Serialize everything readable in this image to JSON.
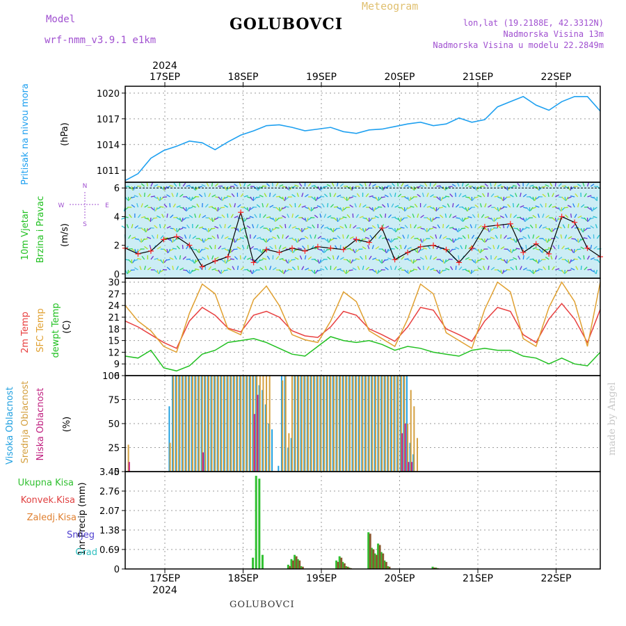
{
  "header": {
    "model_label": "Model",
    "model_name": "wrf-nmm_v3.9.1 e1km",
    "station": "GOLUBOVCI",
    "subtitle": "Meteogram",
    "lonlat": "lon,lat (19.2188E, 42.3312N)",
    "elevation": "Nadmorska Visina 13m",
    "model_elevation": "Nadmorska Visina u modelu 22.2849m"
  },
  "footer": {
    "station": "GOLUBOVCI",
    "watermark": "made by Angel"
  },
  "colors": {
    "pressure": "#1ea0f0",
    "temp2m": "#e84040",
    "sfc_temp": "#e0a030",
    "dewpt": "#20c020",
    "cloud_high": "#20a0e0",
    "cloud_mid": "#d4a040",
    "cloud_low": "#c02080",
    "rain_total": "#30c030",
    "rain_conv": "#e04040",
    "rain_frz": "#e08030",
    "snow": "#5040d0",
    "grad": "#30c0c0",
    "speed_line": "#000000",
    "speed_mark": "#ff2020"
  },
  "chart_data": [
    {
      "type": "line",
      "title": "",
      "ylabels": [
        "Pritisak na nivou mora",
        "(hPa)"
      ],
      "xticks": [
        "17SEP",
        "18SEP",
        "19SEP",
        "20SEP",
        "21SEP",
        "22SEP"
      ],
      "top_year": "2024",
      "yticks": [
        1011,
        1014,
        1017,
        1020
      ],
      "ylim": [
        1009.6,
        1020.8
      ],
      "x": [
        0,
        4,
        8,
        12,
        16,
        20,
        24,
        28,
        32,
        36,
        40,
        44,
        48,
        52,
        56,
        60,
        64,
        68,
        72,
        76,
        80,
        84,
        88,
        92,
        96,
        100,
        104,
        108,
        112,
        116,
        120,
        124,
        128,
        132,
        136,
        140,
        144,
        148
      ],
      "series": [
        {
          "key": "pressure",
          "values": [
            1009.8,
            1010.6,
            1012.4,
            1013.3,
            1013.8,
            1014.4,
            1014.2,
            1013.4,
            1014.3,
            1015.1,
            1015.6,
            1016.2,
            1016.3,
            1016.0,
            1015.6,
            1015.8,
            1016.0,
            1015.5,
            1015.3,
            1015.7,
            1015.8,
            1016.1,
            1016.4,
            1016.6,
            1016.2,
            1016.4,
            1017.1,
            1016.6,
            1016.9,
            1018.4,
            1019.0,
            1019.6,
            1018.6,
            1018.0,
            1019.0,
            1019.6,
            1019.6,
            1017.9
          ]
        }
      ]
    },
    {
      "type": "line",
      "title": "",
      "ylabels": [
        "10m Vjetar",
        "Brzina i Pravac",
        "(m/s)"
      ],
      "compass": [
        "N",
        "W",
        "E",
        "S"
      ],
      "yticks": [
        0,
        2,
        4,
        6
      ],
      "ylim": [
        -0.3,
        6.4
      ],
      "x": [
        0,
        4,
        8,
        12,
        16,
        20,
        24,
        28,
        32,
        36,
        40,
        44,
        48,
        52,
        56,
        60,
        64,
        68,
        72,
        76,
        80,
        84,
        88,
        92,
        96,
        100,
        104,
        108,
        112,
        116,
        120,
        124,
        128,
        132,
        136,
        140,
        144,
        148
      ],
      "series": [
        {
          "key": "speed_line",
          "values": [
            1.8,
            1.4,
            1.6,
            2.4,
            2.6,
            2.0,
            0.5,
            0.9,
            1.2,
            4.3,
            0.8,
            1.7,
            1.5,
            1.8,
            1.6,
            1.9,
            1.8,
            1.7,
            2.4,
            2.2,
            3.2,
            1.0,
            1.5,
            1.9,
            2.0,
            1.7,
            0.8,
            1.8,
            3.3,
            3.4,
            3.5,
            1.5,
            2.1,
            1.4,
            4.0,
            3.6,
            1.8,
            1.2
          ]
        }
      ]
    },
    {
      "type": "line",
      "title": "",
      "ylabels": [
        "2m Temp",
        "SFC Temp",
        "dewpt Temp",
        "(C)"
      ],
      "yticks": [
        6,
        9,
        12,
        15,
        18,
        21,
        24,
        27,
        30
      ],
      "ylim": [
        6,
        31
      ],
      "x": [
        0,
        4,
        8,
        12,
        16,
        20,
        24,
        28,
        32,
        36,
        40,
        44,
        48,
        52,
        56,
        60,
        64,
        68,
        72,
        76,
        80,
        84,
        88,
        92,
        96,
        100,
        104,
        108,
        112,
        116,
        120,
        124,
        128,
        132,
        136,
        140,
        144,
        148
      ],
      "series": [
        {
          "key": "temp2m",
          "name": "2m Temp",
          "values": [
            20.0,
            18.5,
            16.5,
            14.5,
            13.0,
            20.0,
            23.5,
            21.5,
            18.2,
            17.2,
            21.5,
            22.5,
            21.0,
            17.5,
            16.2,
            15.8,
            18.5,
            22.5,
            21.5,
            18.0,
            16.5,
            14.8,
            18.5,
            23.5,
            22.8,
            18.0,
            16.5,
            14.8,
            20.0,
            23.5,
            22.5,
            16.5,
            14.5,
            20.5,
            24.5,
            20.5,
            14.5,
            23.0
          ]
        },
        {
          "key": "sfc_temp",
          "name": "SFC Temp",
          "values": [
            24.0,
            20.0,
            17.5,
            13.5,
            12.0,
            22.0,
            29.5,
            27.0,
            18.0,
            16.5,
            25.5,
            29.0,
            24.0,
            16.5,
            15.2,
            14.5,
            20.0,
            27.5,
            25.0,
            17.5,
            15.5,
            13.5,
            20.5,
            29.5,
            27.0,
            17.0,
            15.0,
            13.0,
            23.0,
            30.0,
            27.5,
            15.5,
            13.5,
            23.5,
            30.0,
            25.0,
            13.5,
            30.0
          ]
        },
        {
          "key": "dewpt",
          "name": "dewpt Temp",
          "values": [
            11.0,
            10.5,
            12.5,
            8.0,
            7.2,
            8.5,
            11.5,
            12.5,
            14.5,
            15.0,
            15.5,
            14.5,
            13.0,
            11.5,
            11.0,
            13.5,
            16.0,
            15.0,
            14.5,
            15.0,
            14.0,
            12.5,
            13.5,
            13.0,
            12.0,
            11.5,
            11.0,
            12.5,
            13.0,
            12.5,
            12.5,
            11.0,
            10.5,
            9.0,
            10.5,
            9.0,
            8.5,
            12.0
          ]
        }
      ]
    },
    {
      "type": "bar",
      "title": "",
      "ylabels": [
        "Visoka Oblacnost",
        "Srednja Oblacnost",
        "Niska Oblacnost",
        "(%)"
      ],
      "yticks": [
        0,
        25,
        50,
        75,
        100
      ],
      "ylim": [
        0,
        100
      ],
      "x": [
        1,
        14,
        15,
        16,
        17,
        18,
        19,
        20,
        21,
        22,
        23,
        24,
        25,
        26,
        27,
        28,
        29,
        30,
        31,
        32,
        33,
        34,
        35,
        36,
        37,
        38,
        39,
        40,
        41,
        42,
        43,
        44,
        45,
        46,
        48,
        49,
        50,
        51,
        52,
        53,
        54,
        55,
        56,
        57,
        58,
        59,
        60,
        61,
        62,
        63,
        64,
        65,
        66,
        67,
        68,
        69,
        70,
        71,
        72,
        73,
        74,
        75,
        76,
        77,
        78,
        79,
        80,
        81,
        82,
        83,
        84,
        85,
        86,
        87,
        88,
        89,
        90,
        91
      ],
      "series": [
        {
          "key": "cloud_high",
          "name": "Visoka Oblacnost",
          "values": [
            0,
            68,
            100,
            100,
            100,
            100,
            100,
            100,
            100,
            100,
            100,
            100,
            100,
            100,
            100,
            100,
            100,
            100,
            100,
            100,
            100,
            100,
            100,
            100,
            100,
            100,
            100,
            100,
            100,
            90,
            85,
            70,
            50,
            44,
            6,
            100,
            100,
            25,
            35,
            100,
            100,
            100,
            100,
            100,
            100,
            100,
            100,
            100,
            100,
            100,
            100,
            100,
            100,
            100,
            100,
            100,
            100,
            100,
            100,
            100,
            100,
            100,
            100,
            100,
            100,
            100,
            100,
            100,
            100,
            100,
            100,
            100,
            100,
            100,
            100,
            30,
            18,
            0
          ]
        },
        {
          "key": "cloud_mid",
          "name": "Srednja Oblacnost",
          "values": [
            28,
            30,
            100,
            100,
            100,
            100,
            100,
            100,
            100,
            100,
            100,
            100,
            100,
            100,
            100,
            100,
            100,
            100,
            100,
            100,
            100,
            100,
            100,
            100,
            100,
            100,
            100,
            100,
            100,
            100,
            100,
            100,
            100,
            0,
            0,
            95,
            100,
            40,
            100,
            100,
            100,
            100,
            100,
            100,
            100,
            100,
            100,
            100,
            100,
            100,
            100,
            100,
            100,
            100,
            100,
            100,
            100,
            100,
            100,
            100,
            100,
            100,
            100,
            100,
            100,
            100,
            100,
            100,
            100,
            100,
            100,
            100,
            100,
            100,
            50,
            85,
            68,
            35
          ]
        },
        {
          "key": "cloud_low",
          "name": "Niska Oblacnost",
          "values": [
            10,
            0,
            0,
            0,
            0,
            0,
            0,
            0,
            0,
            0,
            0,
            20,
            0,
            0,
            0,
            0,
            0,
            0,
            0,
            0,
            0,
            0,
            0,
            0,
            0,
            0,
            0,
            60,
            80,
            0,
            0,
            0,
            0,
            0,
            0,
            0,
            0,
            0,
            0,
            0,
            0,
            0,
            0,
            0,
            0,
            0,
            0,
            0,
            0,
            0,
            0,
            0,
            0,
            0,
            0,
            0,
            0,
            0,
            0,
            0,
            0,
            0,
            0,
            0,
            0,
            0,
            0,
            0,
            0,
            0,
            0,
            0,
            40,
            50,
            10,
            10,
            0,
            0
          ]
        }
      ]
    },
    {
      "type": "bar",
      "title": "",
      "ylabels": [
        "Ukupna Kisa",
        "Konvek.Kisa",
        "Zaledj.Kisa",
        "Snijeg",
        "Grad",
        "1hr Precip (mm)"
      ],
      "xticks": [
        "17SEP",
        "18SEP",
        "19SEP",
        "20SEP",
        "21SEP",
        "22SEP"
      ],
      "bottom_year": "2024",
      "yticks": [
        "0",
        "0.69",
        "1.38",
        "2.07",
        "2.76",
        "3.45"
      ],
      "ylim": [
        0,
        3.45
      ],
      "x": [
        40,
        41,
        42,
        43,
        51,
        52,
        53,
        54,
        55,
        66,
        67,
        68,
        69,
        70,
        76,
        77,
        78,
        79,
        80,
        81,
        82,
        96,
        97
      ],
      "series": [
        {
          "key": "rain_total",
          "name": "Ukupna Kisa",
          "values": [
            0.4,
            3.3,
            3.2,
            0.5,
            0.15,
            0.35,
            0.5,
            0.35,
            0.1,
            0.3,
            0.45,
            0.25,
            0.1,
            0.05,
            1.3,
            0.75,
            0.55,
            0.9,
            0.6,
            0.3,
            0.1,
            0.08,
            0.05
          ]
        },
        {
          "key": "rain_conv",
          "name": "Konvek.Kisa",
          "values": [
            0,
            0,
            0,
            0,
            0.1,
            0.3,
            0.45,
            0.3,
            0.08,
            0.25,
            0.4,
            0.2,
            0.08,
            0.03,
            1.25,
            0.7,
            0.5,
            0.85,
            0.55,
            0.25,
            0.08,
            0.05,
            0.03
          ]
        }
      ]
    }
  ]
}
